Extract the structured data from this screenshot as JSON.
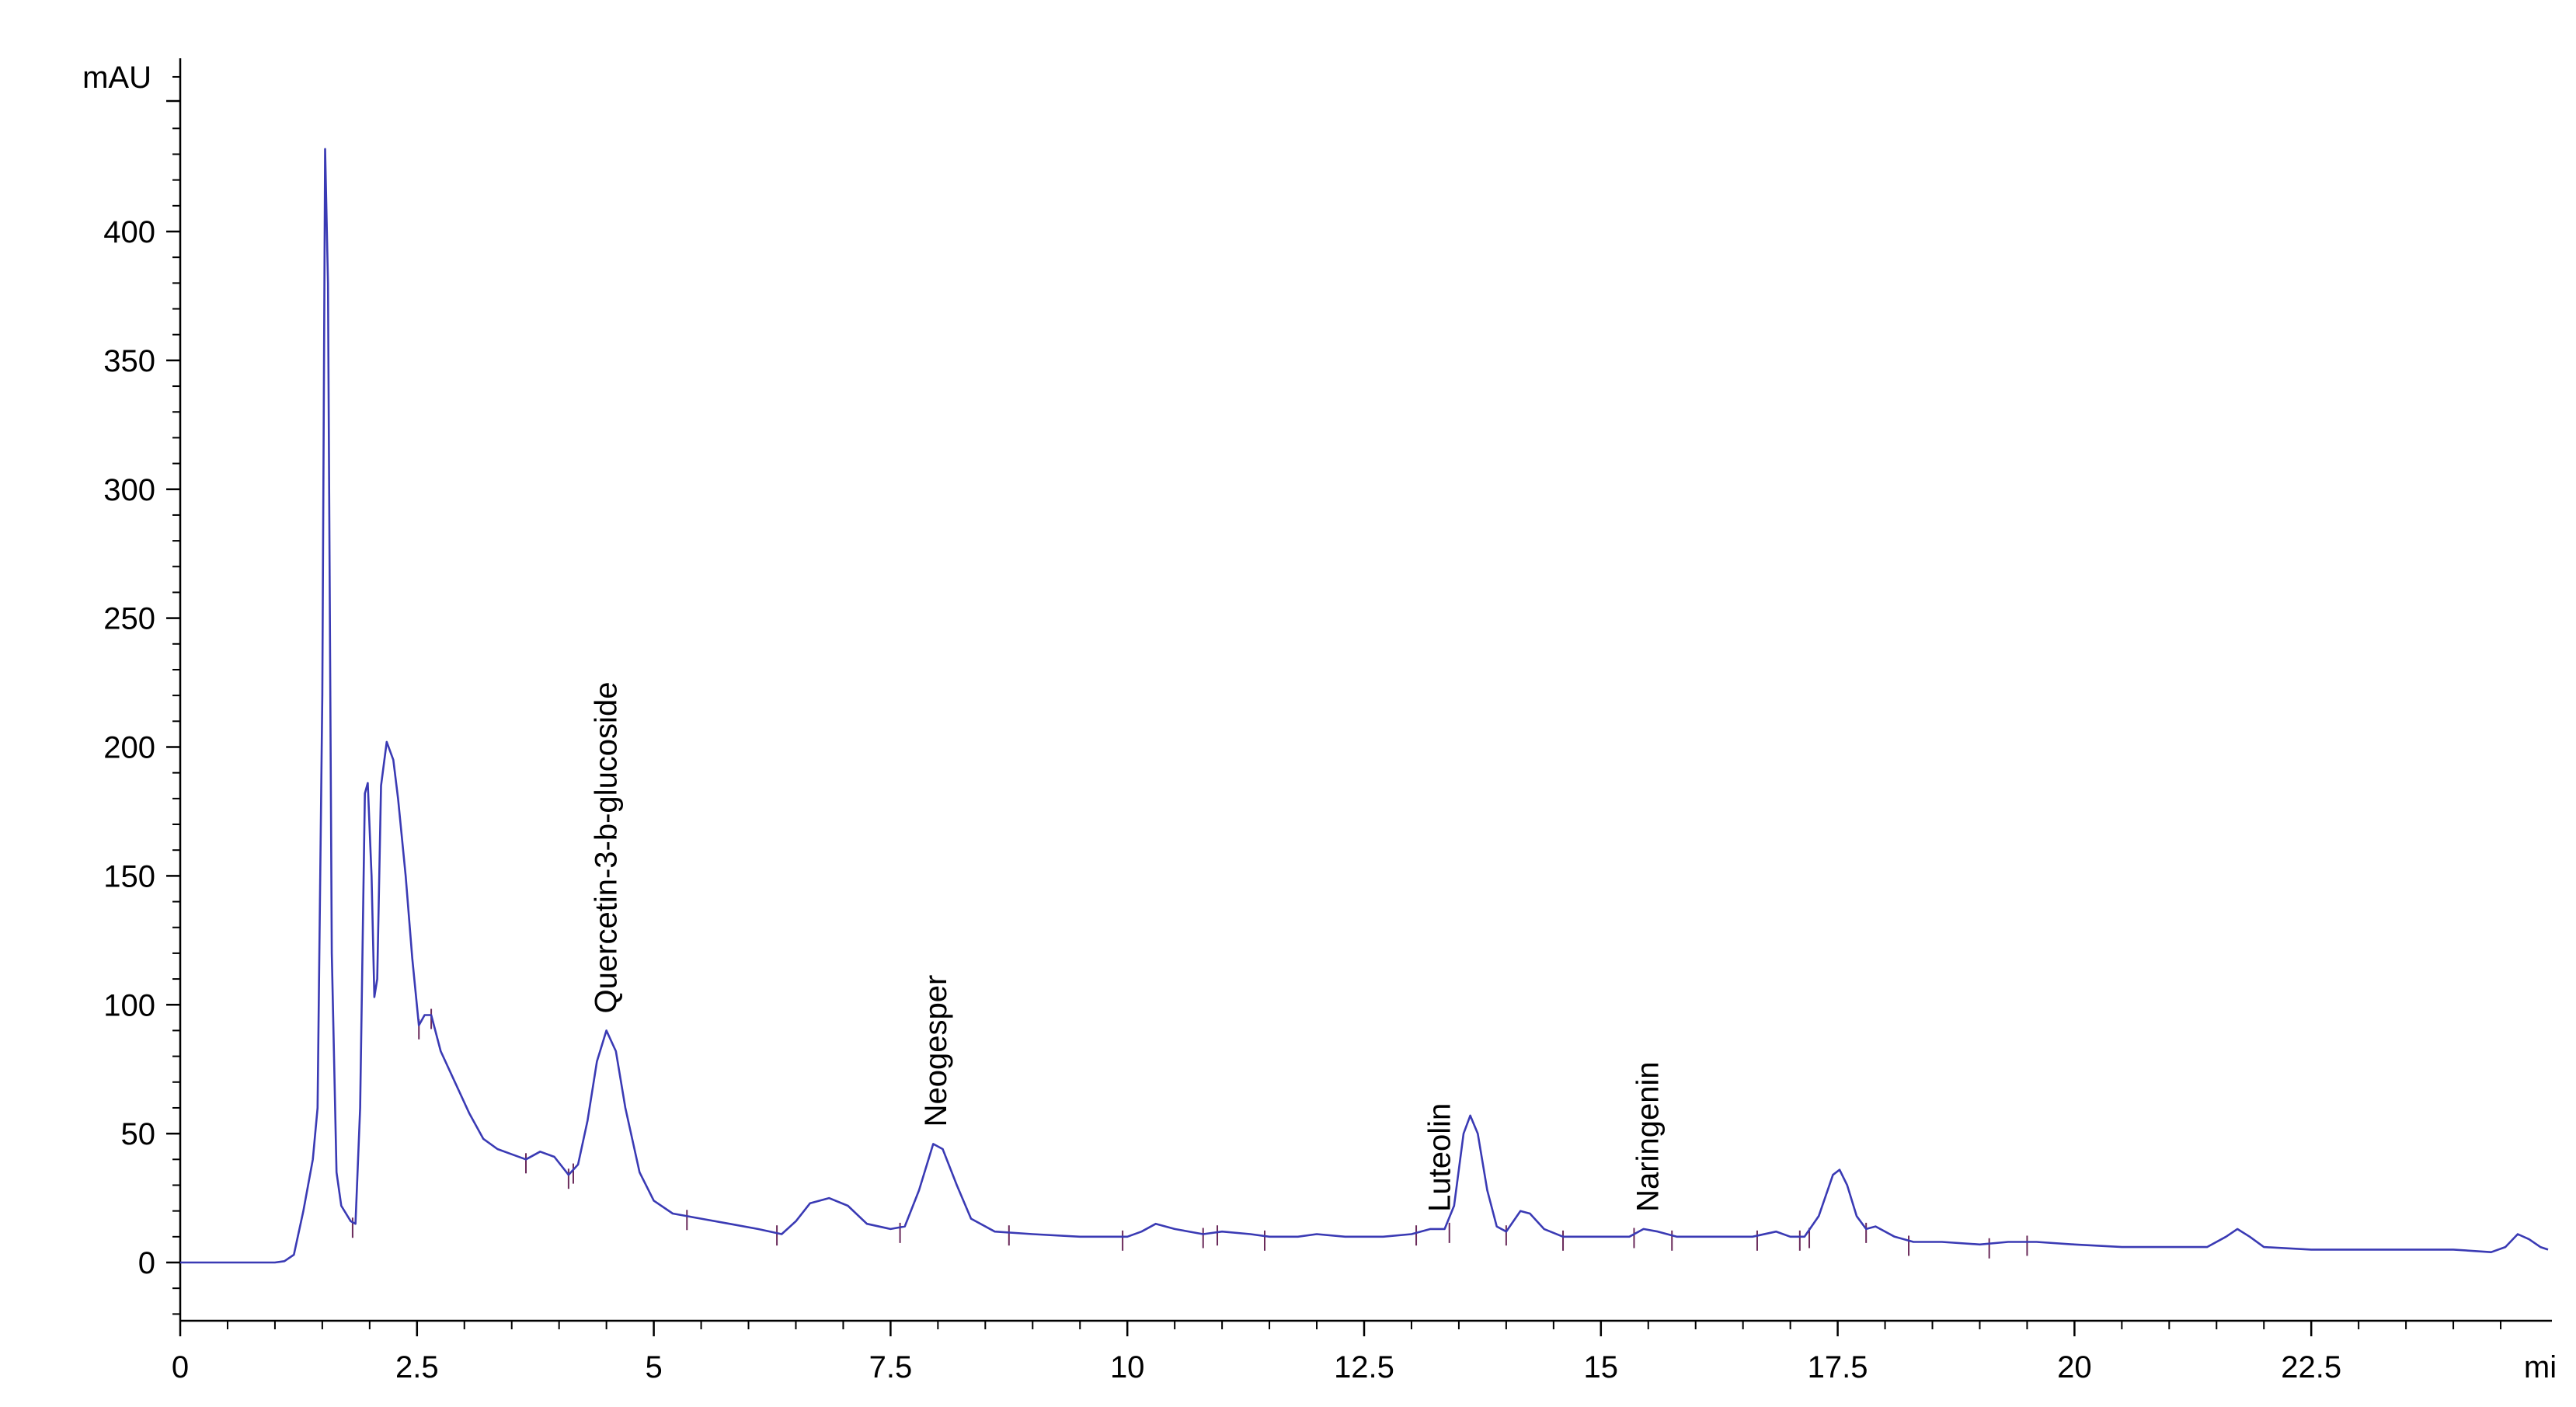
{
  "chart_data": {
    "type": "line",
    "title": "",
    "ylabel": "mAU",
    "xlabel": "mi",
    "xlim": [
      0,
      25
    ],
    "ylim": [
      -22,
      470
    ],
    "x_ticks": [
      0,
      2.5,
      5,
      7.5,
      10,
      12.5,
      15,
      17.5,
      20,
      22.5
    ],
    "x_tick_labels": [
      "0",
      "2.5",
      "5",
      "7.5",
      "10",
      "12.5",
      "15",
      "17.5",
      "20",
      "22.5"
    ],
    "y_ticks": [
      0,
      50,
      100,
      150,
      200,
      250,
      300,
      350,
      400
    ],
    "y_tick_labels": [
      "0",
      "50",
      "100",
      "150",
      "200",
      "250",
      "300",
      "350",
      "400"
    ],
    "grid": false,
    "colors": {
      "trace": "#3a3ab4",
      "marker": "#6a2a5a",
      "axis": "#000000"
    },
    "series": [
      {
        "values_xy": [
          [
            0,
            0
          ],
          [
            1.0,
            0
          ],
          [
            1.1,
            0.5
          ],
          [
            1.2,
            3
          ],
          [
            1.3,
            20
          ],
          [
            1.4,
            40
          ],
          [
            1.45,
            60
          ],
          [
            1.5,
            220
          ],
          [
            1.53,
            432
          ],
          [
            1.56,
            380
          ],
          [
            1.6,
            120
          ],
          [
            1.65,
            35
          ],
          [
            1.7,
            22
          ],
          [
            1.8,
            16
          ],
          [
            1.85,
            15
          ],
          [
            1.9,
            60
          ],
          [
            1.95,
            182
          ],
          [
            1.98,
            186
          ],
          [
            2.02,
            150
          ],
          [
            2.05,
            103
          ],
          [
            2.08,
            110
          ],
          [
            2.12,
            185
          ],
          [
            2.18,
            202
          ],
          [
            2.25,
            195
          ],
          [
            2.3,
            180
          ],
          [
            2.38,
            150
          ],
          [
            2.45,
            118
          ],
          [
            2.52,
            92
          ],
          [
            2.58,
            96
          ],
          [
            2.65,
            96
          ],
          [
            2.75,
            82
          ],
          [
            2.9,
            70
          ],
          [
            3.05,
            58
          ],
          [
            3.2,
            48
          ],
          [
            3.35,
            44
          ],
          [
            3.5,
            42
          ],
          [
            3.65,
            40
          ],
          [
            3.8,
            43
          ],
          [
            3.95,
            41
          ],
          [
            4.1,
            34
          ],
          [
            4.2,
            38
          ],
          [
            4.3,
            55
          ],
          [
            4.4,
            78
          ],
          [
            4.5,
            90
          ],
          [
            4.6,
            82
          ],
          [
            4.7,
            60
          ],
          [
            4.85,
            35
          ],
          [
            5.0,
            24
          ],
          [
            5.2,
            19
          ],
          [
            5.5,
            17
          ],
          [
            5.8,
            15
          ],
          [
            6.1,
            13
          ],
          [
            6.35,
            11
          ],
          [
            6.5,
            16
          ],
          [
            6.65,
            23
          ],
          [
            6.85,
            25
          ],
          [
            7.05,
            22
          ],
          [
            7.25,
            15
          ],
          [
            7.5,
            13
          ],
          [
            7.65,
            14
          ],
          [
            7.8,
            28
          ],
          [
            7.95,
            46
          ],
          [
            8.05,
            44
          ],
          [
            8.2,
            30
          ],
          [
            8.35,
            17
          ],
          [
            8.6,
            12
          ],
          [
            9.0,
            11
          ],
          [
            9.5,
            10
          ],
          [
            10.0,
            10
          ],
          [
            10.15,
            12
          ],
          [
            10.3,
            15
          ],
          [
            10.5,
            13
          ],
          [
            10.8,
            11
          ],
          [
            11.0,
            12
          ],
          [
            11.3,
            11
          ],
          [
            11.5,
            10
          ],
          [
            11.8,
            10
          ],
          [
            12.0,
            11
          ],
          [
            12.3,
            10
          ],
          [
            12.7,
            10
          ],
          [
            13.0,
            11
          ],
          [
            13.2,
            13
          ],
          [
            13.35,
            13
          ],
          [
            13.45,
            22
          ],
          [
            13.55,
            50
          ],
          [
            13.62,
            57
          ],
          [
            13.7,
            50
          ],
          [
            13.8,
            28
          ],
          [
            13.9,
            14
          ],
          [
            14.0,
            12
          ],
          [
            14.15,
            20
          ],
          [
            14.25,
            19
          ],
          [
            14.4,
            13
          ],
          [
            14.6,
            10
          ],
          [
            15.0,
            10
          ],
          [
            15.3,
            10
          ],
          [
            15.45,
            13
          ],
          [
            15.6,
            12
          ],
          [
            15.8,
            10
          ],
          [
            16.2,
            10
          ],
          [
            16.6,
            10
          ],
          [
            16.85,
            12
          ],
          [
            17.0,
            10
          ],
          [
            17.15,
            10
          ],
          [
            17.3,
            18
          ],
          [
            17.45,
            34
          ],
          [
            17.52,
            36
          ],
          [
            17.6,
            30
          ],
          [
            17.7,
            18
          ],
          [
            17.8,
            13
          ],
          [
            17.9,
            14
          ],
          [
            18.1,
            10
          ],
          [
            18.3,
            8
          ],
          [
            18.6,
            8
          ],
          [
            19.0,
            7
          ],
          [
            19.3,
            8
          ],
          [
            19.6,
            8
          ],
          [
            20.0,
            7
          ],
          [
            20.5,
            6
          ],
          [
            21.0,
            6
          ],
          [
            21.4,
            6
          ],
          [
            21.6,
            10
          ],
          [
            21.72,
            13
          ],
          [
            21.85,
            10
          ],
          [
            22.0,
            6
          ],
          [
            22.5,
            5
          ],
          [
            23.0,
            5
          ],
          [
            23.5,
            5
          ],
          [
            24.0,
            5
          ],
          [
            24.4,
            4
          ],
          [
            24.55,
            6
          ],
          [
            24.68,
            11
          ],
          [
            24.8,
            9
          ],
          [
            24.92,
            6
          ],
          [
            25.0,
            5
          ]
        ]
      }
    ],
    "peak_labels": [
      {
        "text": "Quercetin-3-b-glucoside",
        "x": 4.5,
        "y": 90
      },
      {
        "text": "Neogesper",
        "x": 7.98,
        "y": 46
      },
      {
        "text": "Luteolin",
        "x": 13.3,
        "y": 13
      },
      {
        "text": "Naringenin",
        "x": 15.5,
        "y": 13
      }
    ],
    "baseline_markers": [
      {
        "x": 1.82,
        "y": 15
      },
      {
        "x": 2.52,
        "y": 92
      },
      {
        "x": 2.65,
        "y": 96
      },
      {
        "x": 3.65,
        "y": 40
      },
      {
        "x": 4.1,
        "y": 34
      },
      {
        "x": 4.15,
        "y": 36
      },
      {
        "x": 5.35,
        "y": 18
      },
      {
        "x": 6.3,
        "y": 12
      },
      {
        "x": 7.6,
        "y": 13
      },
      {
        "x": 8.75,
        "y": 12
      },
      {
        "x": 9.95,
        "y": 10
      },
      {
        "x": 10.8,
        "y": 11
      },
      {
        "x": 10.95,
        "y": 12
      },
      {
        "x": 11.45,
        "y": 10
      },
      {
        "x": 13.05,
        "y": 12
      },
      {
        "x": 13.4,
        "y": 13
      },
      {
        "x": 14.0,
        "y": 12
      },
      {
        "x": 14.6,
        "y": 10
      },
      {
        "x": 15.35,
        "y": 11
      },
      {
        "x": 15.75,
        "y": 10
      },
      {
        "x": 16.65,
        "y": 10
      },
      {
        "x": 17.1,
        "y": 10
      },
      {
        "x": 17.2,
        "y": 11
      },
      {
        "x": 17.8,
        "y": 13
      },
      {
        "x": 18.25,
        "y": 8
      },
      {
        "x": 19.1,
        "y": 7
      },
      {
        "x": 19.5,
        "y": 8
      }
    ]
  }
}
